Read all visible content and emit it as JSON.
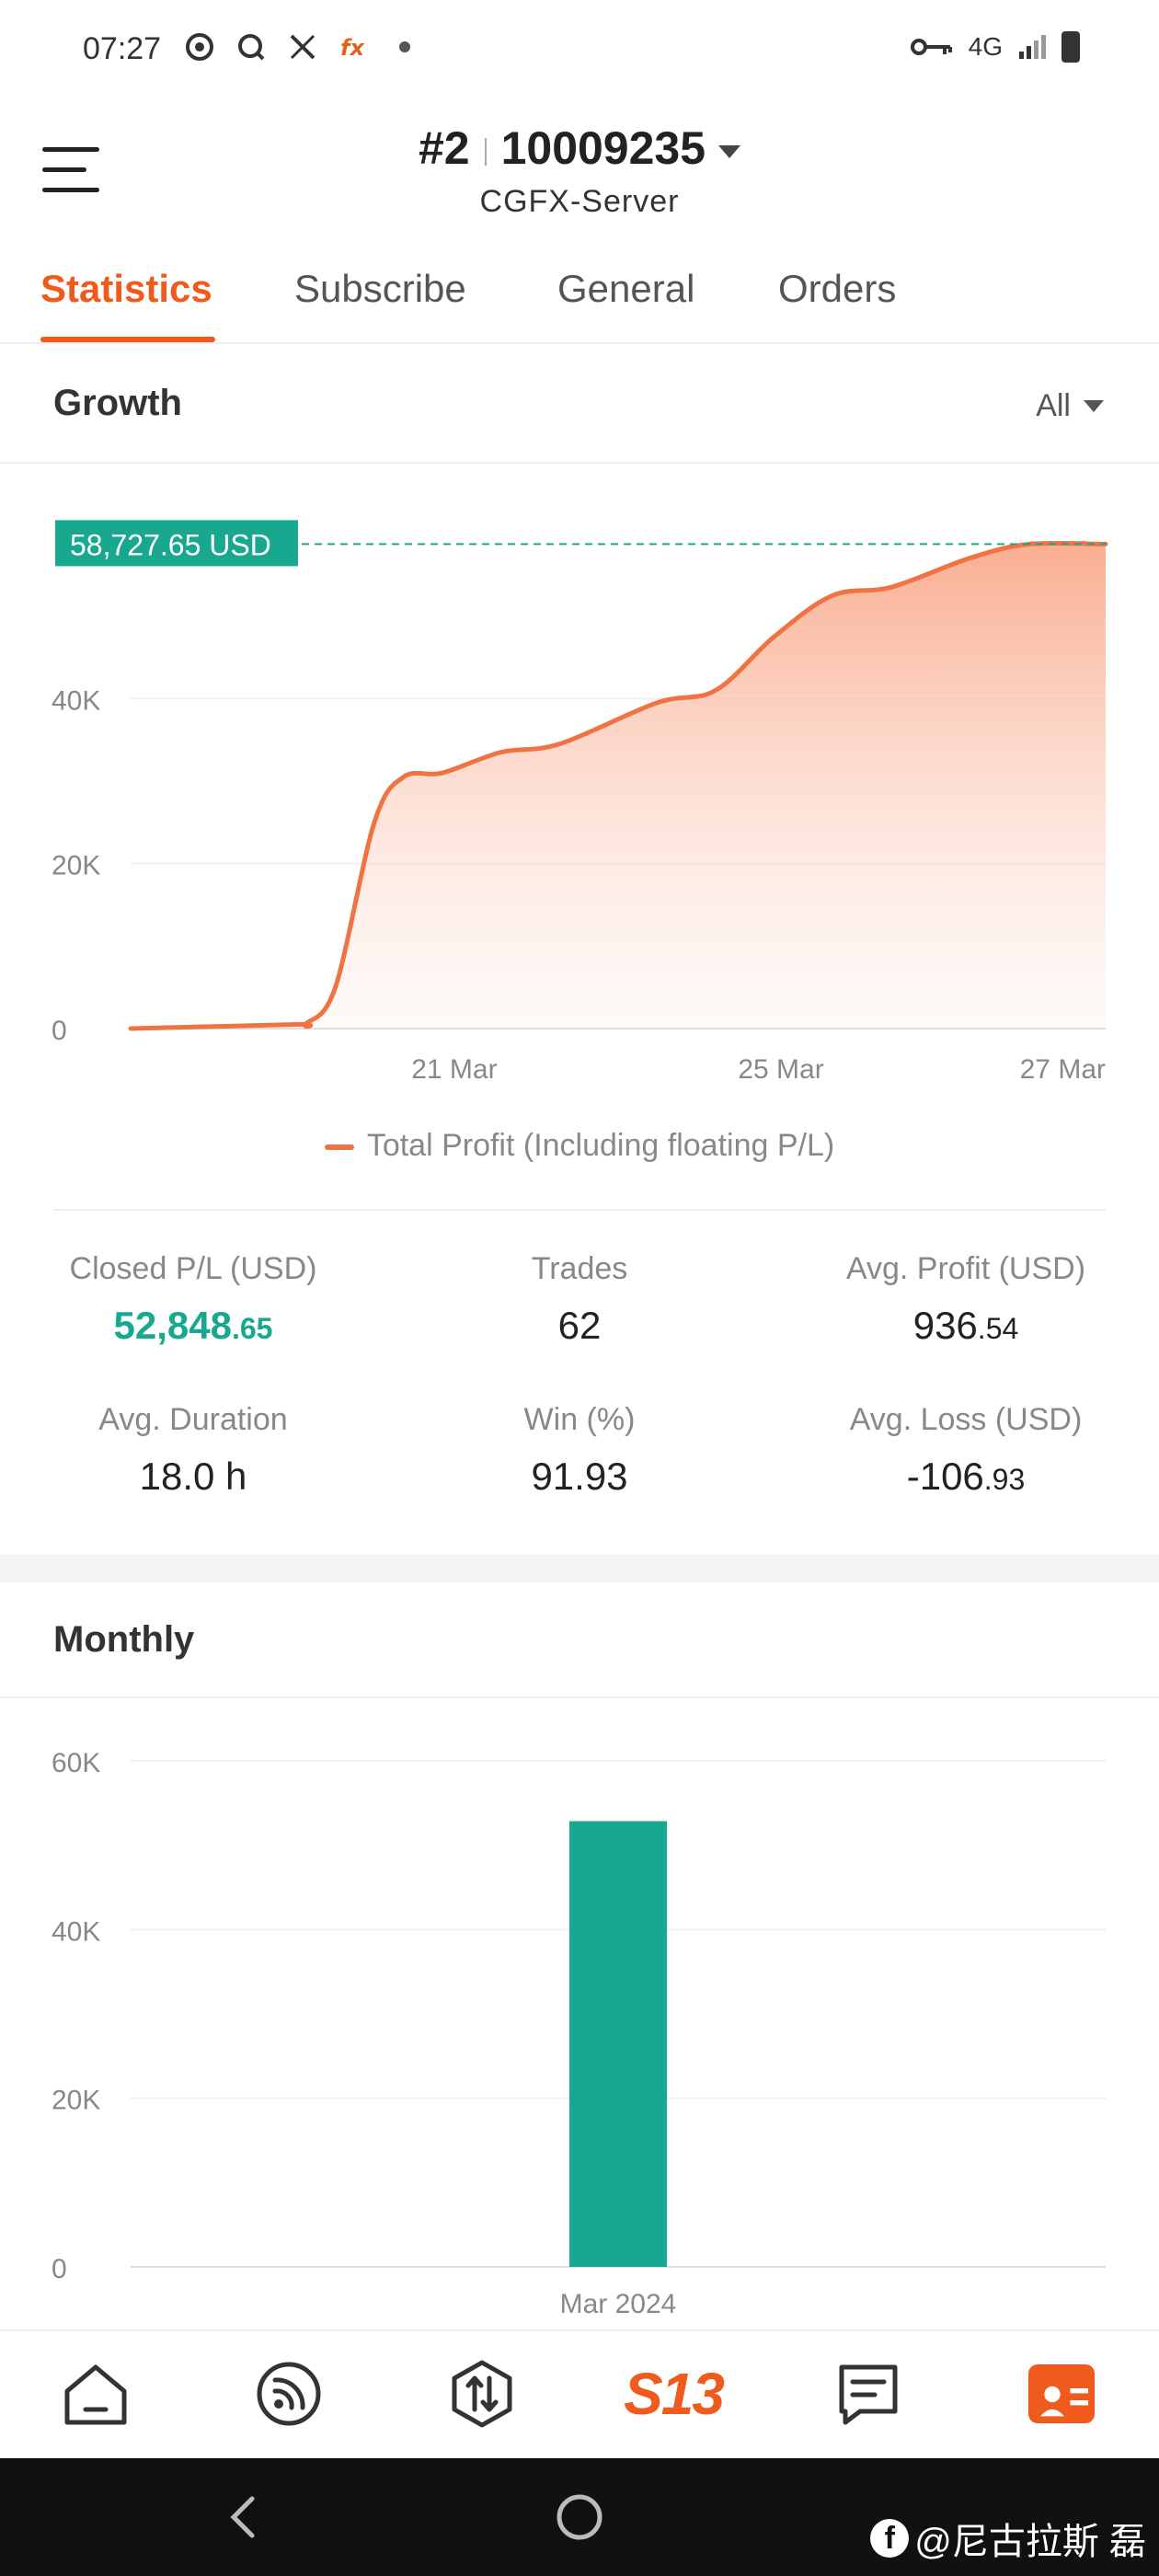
{
  "status_bar": {
    "time": "07:27",
    "network": "4G"
  },
  "header": {
    "account_index": "#2",
    "account_number": "10009235",
    "server": "CGFX-Server"
  },
  "tabs": [
    {
      "label": "Statistics",
      "active": true
    },
    {
      "label": "Subscribe",
      "active": false
    },
    {
      "label": "General",
      "active": false
    },
    {
      "label": "Orders",
      "active": false
    }
  ],
  "growth": {
    "title": "Growth",
    "range": "All",
    "current_value_label": "58,727.65 USD",
    "legend": "Total Profit (Including floating P/L)"
  },
  "stats": {
    "closed_pl": {
      "label": "Closed P/L (USD)",
      "int": "52,848",
      "dec": ".65"
    },
    "trades": {
      "label": "Trades",
      "value": "62"
    },
    "avg_profit": {
      "label": "Avg. Profit (USD)",
      "int": "936",
      "dec": ".54"
    },
    "avg_duration": {
      "label": "Avg. Duration",
      "value": "18.0 h"
    },
    "win": {
      "label": "Win (%)",
      "value": "91.93"
    },
    "avg_loss": {
      "label": "Avg. Loss (USD)",
      "int": "-106",
      "dec": ".93"
    }
  },
  "monthly": {
    "title": "Monthly"
  },
  "chart_data": [
    {
      "type": "area",
      "title": "",
      "xlabel": "",
      "ylabel": "",
      "x_ticks": [
        "21 Mar",
        "25 Mar",
        "27 Mar"
      ],
      "y_ticks": [
        "0",
        "20K",
        "40K"
      ],
      "ylim": [
        0,
        60000
      ],
      "grid": true,
      "series": [
        {
          "name": "Total Profit (Including floating P/L)",
          "color": "#f07344",
          "points": [
            [
              0,
              0
            ],
            [
              0.17,
              500
            ],
            [
              0.18,
              600
            ],
            [
              0.21,
              5000
            ],
            [
              0.25,
              25000
            ],
            [
              0.28,
              30500
            ],
            [
              0.32,
              31000
            ],
            [
              0.38,
              33500
            ],
            [
              0.44,
              34500
            ],
            [
              0.54,
              39500
            ],
            [
              0.6,
              41000
            ],
            [
              0.66,
              47500
            ],
            [
              0.72,
              52500
            ],
            [
              0.78,
              53500
            ],
            [
              0.86,
              57000
            ],
            [
              0.92,
              58700
            ],
            [
              1.0,
              58727.65
            ]
          ]
        }
      ],
      "reference_line": {
        "value": 58727.65,
        "label": "58,727.65 USD",
        "color": "#17a88f"
      }
    },
    {
      "type": "bar",
      "title": "",
      "xlabel": "",
      "ylabel": "",
      "categories": [
        "Mar 2024"
      ],
      "values": [
        52848.65
      ],
      "y_ticks": [
        "0",
        "20K",
        "40K",
        "60K"
      ],
      "ylim": [
        0,
        60000
      ],
      "grid": true,
      "color": "#17a88f"
    }
  ],
  "nav": {
    "items": [
      {
        "name": "home",
        "icon": "home-icon"
      },
      {
        "name": "feed",
        "icon": "signal-icon"
      },
      {
        "name": "trade",
        "icon": "trade-icon"
      },
      {
        "name": "brand",
        "label": "S13"
      },
      {
        "name": "news",
        "icon": "news-icon"
      },
      {
        "name": "profile",
        "icon": "profile-icon"
      }
    ]
  },
  "watermark": "@尼古拉斯 磊"
}
